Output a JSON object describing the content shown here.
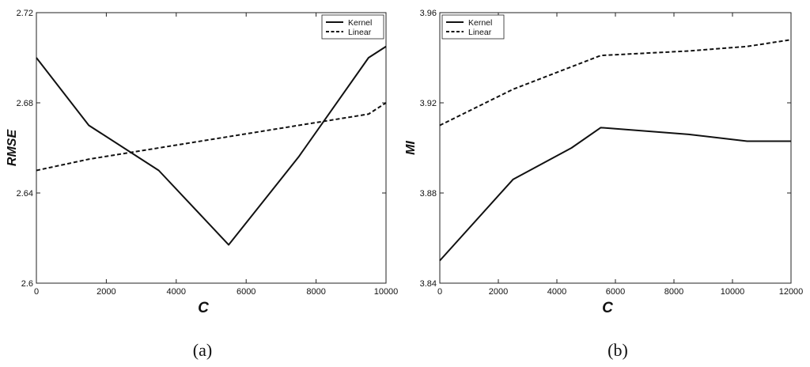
{
  "chart_data": [
    {
      "type": "line",
      "caption": "(a)",
      "xlabel": "C",
      "ylabel": "RMSE",
      "xlim": [
        0,
        10000
      ],
      "ylim": [
        2.6,
        2.72
      ],
      "xticks": [
        "0",
        "2000",
        "4000",
        "6000",
        "8000",
        "10000"
      ],
      "yticks": [
        "2.6",
        "2.64",
        "2.68",
        "2.72"
      ],
      "legend_position": "top-right",
      "series": [
        {
          "name": "Kernel",
          "style": "solid",
          "x": [
            0,
            1500,
            3500,
            5500,
            7500,
            9500,
            10000
          ],
          "y": [
            2.7,
            2.67,
            2.65,
            2.617,
            2.656,
            2.7,
            2.705
          ]
        },
        {
          "name": "Linear",
          "style": "dashed",
          "x": [
            0,
            1500,
            3500,
            5500,
            7500,
            9500,
            10000
          ],
          "y": [
            2.65,
            2.655,
            2.66,
            2.665,
            2.67,
            2.675,
            2.68
          ]
        }
      ]
    },
    {
      "type": "line",
      "caption": "(b)",
      "xlabel": "C",
      "ylabel": "MI",
      "xlim": [
        0,
        12000
      ],
      "ylim": [
        3.84,
        3.96
      ],
      "xticks": [
        "0",
        "2000",
        "4000",
        "6000",
        "8000",
        "10000",
        "12000"
      ],
      "yticks": [
        "3.84",
        "3.88",
        "3.92",
        "3.96"
      ],
      "legend_position": "top-left",
      "series": [
        {
          "name": "Kernel",
          "style": "solid",
          "x": [
            0,
            2500,
            4500,
            5500,
            8500,
            10500,
            12000
          ],
          "y": [
            3.85,
            3.886,
            3.9,
            3.909,
            3.906,
            3.903,
            3.903
          ]
        },
        {
          "name": "Linear",
          "style": "dashed",
          "x": [
            0,
            2500,
            5500,
            8500,
            10500,
            12000
          ],
          "y": [
            3.91,
            3.926,
            3.941,
            3.943,
            3.945,
            3.948
          ]
        }
      ]
    }
  ]
}
